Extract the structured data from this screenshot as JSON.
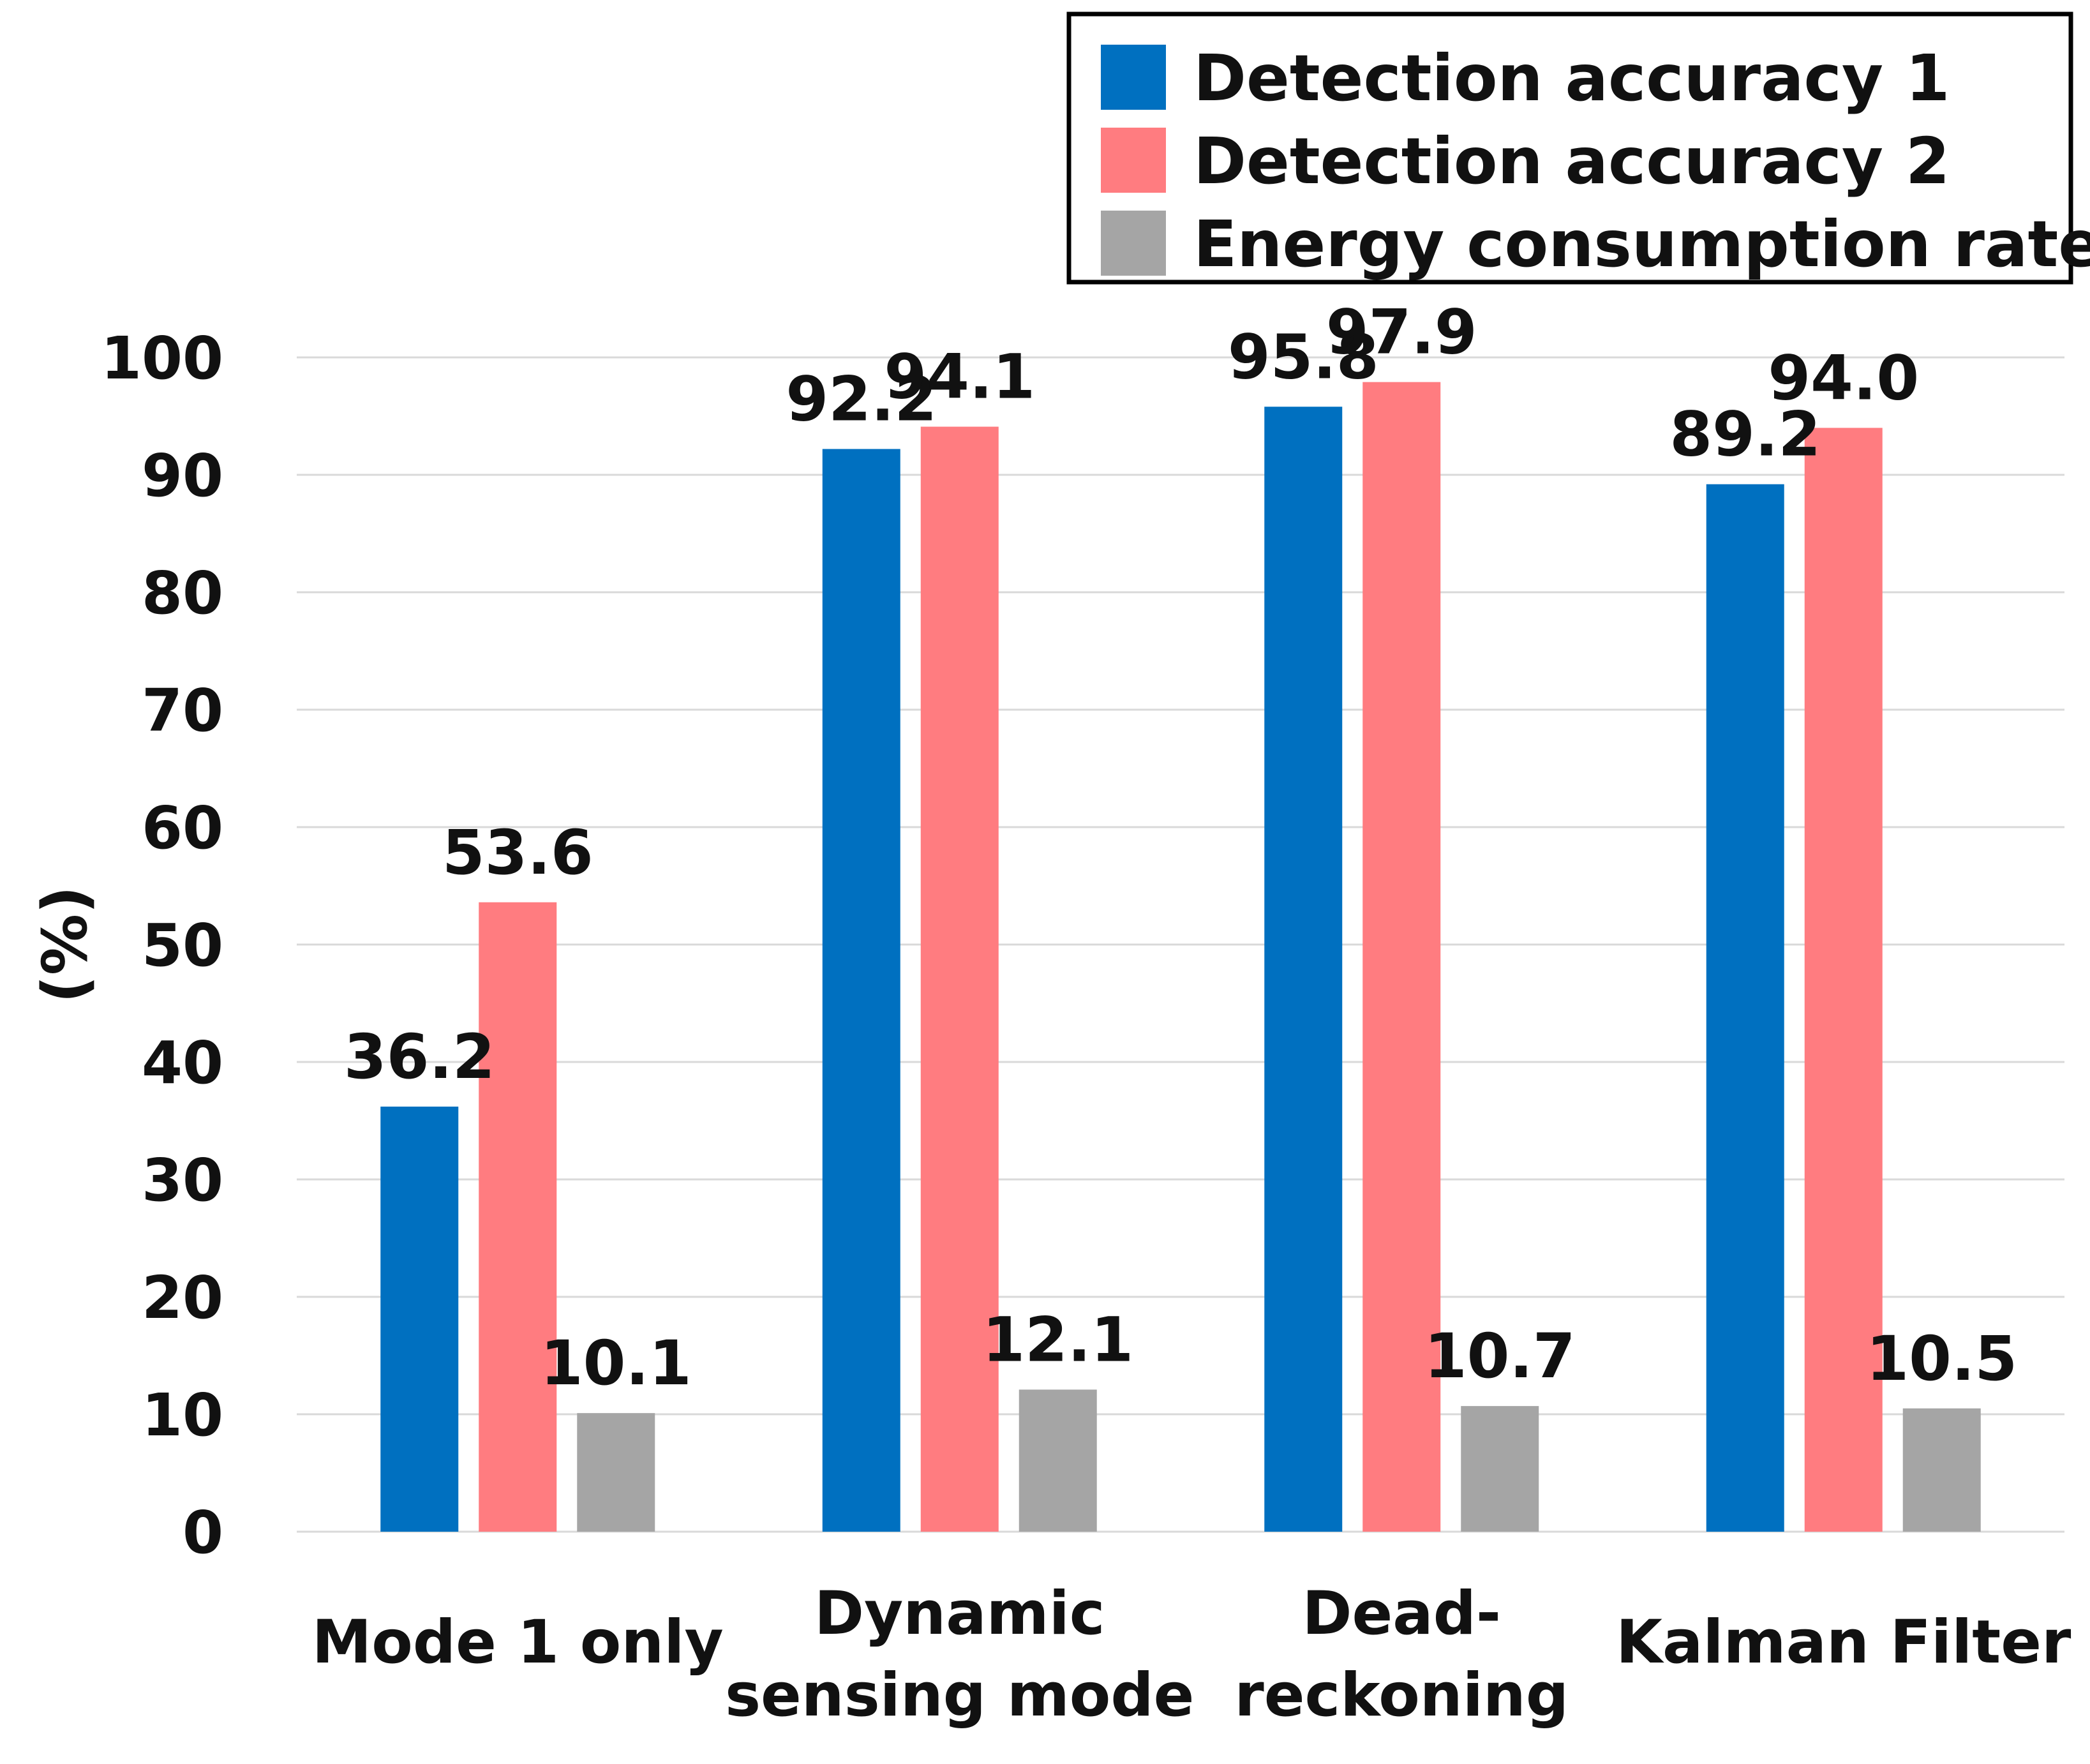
{
  "chart_data": {
    "type": "bar",
    "categories": [
      [
        "Mode 1 only"
      ],
      [
        "Dynamic",
        "sensing mode"
      ],
      [
        "Dead-",
        "reckoning"
      ],
      [
        "Kalman Filter"
      ]
    ],
    "series": [
      {
        "name": "Detection accuracy 1",
        "color": "#0070c0",
        "values": [
          36.2,
          92.2,
          95.8,
          89.2
        ],
        "labels": [
          "36.2",
          "92.2",
          "95.8",
          "89.2"
        ]
      },
      {
        "name": "Detection accuracy 2",
        "color": "#ff7c80",
        "values": [
          53.6,
          94.1,
          97.9,
          94.0
        ],
        "labels": [
          "53.6",
          "94.1",
          "97.9",
          "94.0"
        ]
      },
      {
        "name": "Energy consumption rate",
        "color": "#a5a5a5",
        "values": [
          10.1,
          12.1,
          10.7,
          10.5
        ],
        "labels": [
          "10.1",
          "12.1",
          "10.7",
          "10.5"
        ]
      }
    ],
    "ylabel": "(%)",
    "ylim": [
      0,
      100
    ],
    "yticks": [
      0,
      10,
      20,
      30,
      40,
      50,
      60,
      70,
      80,
      90,
      100
    ],
    "grid": true,
    "legend_position": "top-right"
  }
}
